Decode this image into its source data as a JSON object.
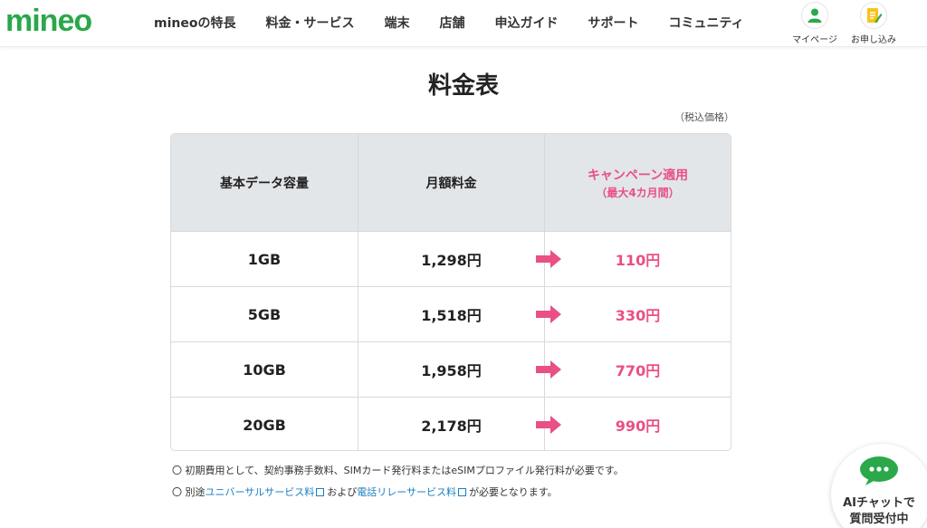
{
  "header": {
    "logo": "mineo",
    "nav": [
      "mineoの特長",
      "料金・サービス",
      "端末",
      "店舗",
      "申込ガイド",
      "サポート",
      "コミュニティ"
    ],
    "mypage_label": "マイページ",
    "apply_label": "お申し込み"
  },
  "title": "料金表",
  "tax_note": "（税込価格）",
  "table": {
    "headers": {
      "capacity": "基本データ容量",
      "monthly": "月額料金",
      "campaign": "キャンペーン適用",
      "campaign_sub": "（最大4カ月間）"
    },
    "rows": [
      {
        "capacity": "1GB",
        "monthly": "1,298円",
        "campaign": "110円"
      },
      {
        "capacity": "5GB",
        "monthly": "1,518円",
        "campaign": "330円"
      },
      {
        "capacity": "10GB",
        "monthly": "1,958円",
        "campaign": "770円"
      },
      {
        "capacity": "20GB",
        "monthly": "2,178円",
        "campaign": "990円"
      }
    ]
  },
  "notes": {
    "line1": "〇 初期費用として、契約事務手数料、SIMカード発行料またはeSIMプロファイル発行料が必要です。",
    "line2_prefix": "〇 別途",
    "link1": "ユニバーサルサービス料",
    "line2_mid": "および",
    "link2": "電話リレーサービス料",
    "line2_suffix": "が必要となります。"
  },
  "ai_chat": {
    "line1": "AIチャットで",
    "line2": "質問受付中"
  },
  "colors": {
    "brand_green": "#2aa84a",
    "accent_pink": "#ea4f86",
    "link_blue": "#1a7fc1",
    "header_bg": "#e2e6e9"
  }
}
